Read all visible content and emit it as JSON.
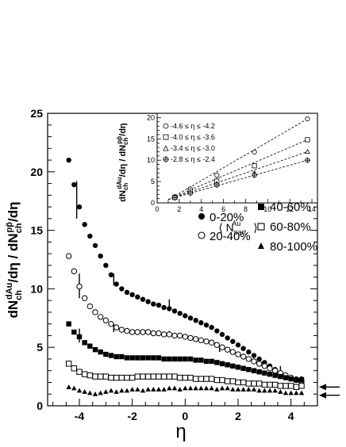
{
  "chart_data": [
    {
      "type": "scatter",
      "xlabel": "η",
      "ylabel": "dN_ch^dAu/dη / dN_ch^pp̄/dη",
      "xlim": [
        -5.2,
        5.0
      ],
      "ylim": [
        0,
        25
      ],
      "x_ticks": [
        -4,
        -2,
        0,
        2,
        4
      ],
      "y_ticks": [
        0,
        5,
        10,
        15,
        20,
        25
      ],
      "grid": false,
      "legend": "center-right",
      "series": [
        {
          "name": "0-20%",
          "marker": "filled-circle",
          "points": [
            [
              -4.4,
              21.0
            ],
            [
              -4.2,
              18.9
            ],
            [
              -4.0,
              17.0
            ],
            [
              -3.8,
              15.5
            ],
            [
              -3.6,
              14.5
            ],
            [
              -3.4,
              13.7
            ],
            [
              -3.2,
              12.8
            ],
            [
              -3.0,
              12.0
            ],
            [
              -2.8,
              11.2
            ],
            [
              -2.6,
              10.4
            ],
            [
              -2.4,
              10.0
            ],
            [
              -2.2,
              9.7
            ],
            [
              -2.0,
              9.5
            ],
            [
              -1.8,
              9.3
            ],
            [
              -1.6,
              9.1
            ],
            [
              -1.4,
              8.9
            ],
            [
              -1.2,
              8.7
            ],
            [
              -1.0,
              8.6
            ],
            [
              -0.8,
              8.4
            ],
            [
              -0.6,
              8.3
            ],
            [
              -0.4,
              8.1
            ],
            [
              -0.2,
              7.9
            ],
            [
              0.0,
              7.7
            ],
            [
              0.2,
              7.5
            ],
            [
              0.4,
              7.3
            ],
            [
              0.6,
              7.1
            ],
            [
              0.8,
              6.9
            ],
            [
              1.0,
              6.7
            ],
            [
              1.2,
              6.4
            ],
            [
              1.4,
              6.1
            ],
            [
              1.6,
              5.8
            ],
            [
              1.8,
              5.5
            ],
            [
              2.0,
              5.2
            ],
            [
              2.2,
              4.9
            ],
            [
              2.4,
              4.6
            ],
            [
              2.6,
              4.3
            ],
            [
              2.8,
              4.0
            ],
            [
              3.0,
              3.7
            ],
            [
              3.2,
              3.4
            ],
            [
              3.4,
              3.1
            ],
            [
              3.6,
              2.8
            ],
            [
              3.8,
              2.6
            ],
            [
              4.0,
              2.4
            ],
            [
              4.2,
              2.3
            ],
            [
              4.4,
              2.3
            ]
          ]
        },
        {
          "name": "20-40%",
          "marker": "open-circle",
          "points": [
            [
              -4.4,
              12.8
            ],
            [
              -4.2,
              11.5
            ],
            [
              -4.0,
              10.2
            ],
            [
              -3.8,
              9.2
            ],
            [
              -3.6,
              8.5
            ],
            [
              -3.4,
              8.0
            ],
            [
              -3.2,
              7.6
            ],
            [
              -3.0,
              7.3
            ],
            [
              -2.8,
              7.0
            ],
            [
              -2.6,
              6.7
            ],
            [
              -2.4,
              6.5
            ],
            [
              -2.2,
              6.4
            ],
            [
              -2.0,
              6.3
            ],
            [
              -1.8,
              6.3
            ],
            [
              -1.6,
              6.3
            ],
            [
              -1.4,
              6.3
            ],
            [
              -1.2,
              6.2
            ],
            [
              -1.0,
              6.2
            ],
            [
              -0.8,
              6.1
            ],
            [
              -0.6,
              6.1
            ],
            [
              -0.4,
              6.0
            ],
            [
              -0.2,
              6.0
            ],
            [
              0.0,
              5.9
            ],
            [
              0.2,
              5.8
            ],
            [
              0.4,
              5.7
            ],
            [
              0.6,
              5.6
            ],
            [
              0.8,
              5.5
            ],
            [
              1.0,
              5.4
            ],
            [
              1.2,
              5.2
            ],
            [
              1.4,
              5.0
            ],
            [
              1.6,
              4.8
            ],
            [
              1.8,
              4.6
            ],
            [
              2.0,
              4.4
            ],
            [
              2.2,
              4.2
            ],
            [
              2.4,
              4.0
            ],
            [
              2.6,
              3.8
            ],
            [
              2.8,
              3.6
            ],
            [
              3.0,
              3.4
            ],
            [
              3.2,
              3.2
            ],
            [
              3.4,
              3.0
            ],
            [
              3.6,
              2.8
            ],
            [
              3.8,
              2.6
            ],
            [
              4.0,
              2.4
            ],
            [
              4.2,
              2.2
            ],
            [
              4.4,
              2.1
            ]
          ]
        },
        {
          "name": "40-60%",
          "marker": "filled-square",
          "points": [
            [
              -4.4,
              7.0
            ],
            [
              -4.2,
              6.3
            ],
            [
              -4.0,
              5.9
            ],
            [
              -3.8,
              5.4
            ],
            [
              -3.6,
              5.1
            ],
            [
              -3.4,
              4.8
            ],
            [
              -3.2,
              4.6
            ],
            [
              -3.0,
              4.4
            ],
            [
              -2.8,
              4.3
            ],
            [
              -2.6,
              4.2
            ],
            [
              -2.4,
              4.2
            ],
            [
              -2.2,
              4.1
            ],
            [
              -2.0,
              4.1
            ],
            [
              -1.8,
              4.1
            ],
            [
              -1.6,
              4.1
            ],
            [
              -1.4,
              4.1
            ],
            [
              -1.2,
              4.1
            ],
            [
              -1.0,
              4.1
            ],
            [
              -0.8,
              4.0
            ],
            [
              -0.6,
              4.0
            ],
            [
              -0.4,
              4.0
            ],
            [
              -0.2,
              4.0
            ],
            [
              0.0,
              4.0
            ],
            [
              0.2,
              4.0
            ],
            [
              0.4,
              3.9
            ],
            [
              0.6,
              3.9
            ],
            [
              0.8,
              3.8
            ],
            [
              1.0,
              3.8
            ],
            [
              1.2,
              3.7
            ],
            [
              1.4,
              3.6
            ],
            [
              1.6,
              3.5
            ],
            [
              1.8,
              3.4
            ],
            [
              2.0,
              3.3
            ],
            [
              2.2,
              3.2
            ],
            [
              2.4,
              3.1
            ],
            [
              2.6,
              3.0
            ],
            [
              2.8,
              2.9
            ],
            [
              3.0,
              2.8
            ],
            [
              3.2,
              2.7
            ],
            [
              3.4,
              2.6
            ],
            [
              3.6,
              2.5
            ],
            [
              3.8,
              2.4
            ],
            [
              4.0,
              2.3
            ],
            [
              4.2,
              2.2
            ],
            [
              4.4,
              2.2
            ]
          ]
        },
        {
          "name": "60-80%",
          "marker": "open-square",
          "points": [
            [
              -4.4,
              3.6
            ],
            [
              -4.2,
              3.2
            ],
            [
              -4.0,
              2.9
            ],
            [
              -3.8,
              2.7
            ],
            [
              -3.6,
              2.6
            ],
            [
              -3.4,
              2.5
            ],
            [
              -3.2,
              2.5
            ],
            [
              -3.0,
              2.5
            ],
            [
              -2.8,
              2.4
            ],
            [
              -2.6,
              2.4
            ],
            [
              -2.4,
              2.4
            ],
            [
              -2.2,
              2.4
            ],
            [
              -2.0,
              2.4
            ],
            [
              -1.8,
              2.5
            ],
            [
              -1.6,
              2.5
            ],
            [
              -1.4,
              2.5
            ],
            [
              -1.2,
              2.5
            ],
            [
              -1.0,
              2.5
            ],
            [
              -0.8,
              2.5
            ],
            [
              -0.6,
              2.5
            ],
            [
              -0.4,
              2.5
            ],
            [
              -0.2,
              2.4
            ],
            [
              0.0,
              2.4
            ],
            [
              0.2,
              2.4
            ],
            [
              0.4,
              2.3
            ],
            [
              0.6,
              2.3
            ],
            [
              0.8,
              2.3
            ],
            [
              1.0,
              2.3
            ],
            [
              1.2,
              2.2
            ],
            [
              1.4,
              2.2
            ],
            [
              1.6,
              2.1
            ],
            [
              1.8,
              2.1
            ],
            [
              2.0,
              2.0
            ],
            [
              2.2,
              2.0
            ],
            [
              2.4,
              1.9
            ],
            [
              2.6,
              1.9
            ],
            [
              2.8,
              1.9
            ],
            [
              3.0,
              1.8
            ],
            [
              3.2,
              1.8
            ],
            [
              3.4,
              1.8
            ],
            [
              3.6,
              1.7
            ],
            [
              3.8,
              1.7
            ],
            [
              4.0,
              1.7
            ],
            [
              4.2,
              1.6
            ],
            [
              4.4,
              1.7
            ]
          ]
        },
        {
          "name": "80-100%",
          "marker": "filled-triangle",
          "points": [
            [
              -4.4,
              1.6
            ],
            [
              -4.2,
              1.5
            ],
            [
              -4.0,
              1.3
            ],
            [
              -3.8,
              1.2
            ],
            [
              -3.6,
              1.1
            ],
            [
              -3.4,
              1.0
            ],
            [
              -3.2,
              1.1
            ],
            [
              -3.0,
              1.2
            ],
            [
              -2.8,
              1.3
            ],
            [
              -2.6,
              1.2
            ],
            [
              -2.4,
              1.3
            ],
            [
              -2.2,
              1.3
            ],
            [
              -2.0,
              1.4
            ],
            [
              -1.8,
              1.4
            ],
            [
              -1.6,
              1.3
            ],
            [
              -1.4,
              1.4
            ],
            [
              -1.2,
              1.4
            ],
            [
              -1.0,
              1.4
            ],
            [
              -0.8,
              1.4
            ],
            [
              -0.6,
              1.5
            ],
            [
              -0.4,
              1.5
            ],
            [
              -0.2,
              1.4
            ],
            [
              0.0,
              1.5
            ],
            [
              0.2,
              1.5
            ],
            [
              0.4,
              1.5
            ],
            [
              0.6,
              1.5
            ],
            [
              0.8,
              1.5
            ],
            [
              1.0,
              1.5
            ],
            [
              1.2,
              1.4
            ],
            [
              1.4,
              1.5
            ],
            [
              1.6,
              1.5
            ],
            [
              1.8,
              1.4
            ],
            [
              2.0,
              1.4
            ],
            [
              2.2,
              1.4
            ],
            [
              2.4,
              1.4
            ],
            [
              2.6,
              1.4
            ],
            [
              2.8,
              1.3
            ],
            [
              3.0,
              1.3
            ],
            [
              3.2,
              1.3
            ],
            [
              3.4,
              1.3
            ],
            [
              3.6,
              1.2
            ],
            [
              3.8,
              1.1
            ],
            [
              4.0,
              1.1
            ],
            [
              4.2,
              1.1
            ],
            [
              4.4,
              1.1
            ]
          ]
        }
      ],
      "systematic_markers": [
        {
          "x": -4.1,
          "y_low": 16.0,
          "y_high": 19.2
        },
        {
          "x": -4.0,
          "y_low": 9.2,
          "y_high": 11.3
        },
        {
          "x": -4.0,
          "y_low": 5.4,
          "y_high": 6.6
        },
        {
          "x": -2.7,
          "y_low": 10.3,
          "y_high": 11.3
        },
        {
          "x": -2.7,
          "y_low": 6.3,
          "y_high": 7.0
        },
        {
          "x": -0.6,
          "y_low": 8.3,
          "y_high": 9.1
        },
        {
          "x": -0.6,
          "y_low": 5.9,
          "y_high": 6.4
        },
        {
          "x": 1.3,
          "y_low": 4.6,
          "y_high": 5.0
        },
        {
          "x": 3.6,
          "y_low": 2.9,
          "y_high": 3.4
        }
      ],
      "arrows": [
        {
          "y": 1.6
        },
        {
          "y": 0.9
        }
      ]
    },
    {
      "type": "scatter",
      "xlabel": "⟨N_part^Au⟩",
      "ylabel": "dN_ch^dAu/dη / dN_ch^pp̄/dη",
      "xlim": [
        0,
        14.5
      ],
      "ylim": [
        0,
        21
      ],
      "x_ticks": [
        0,
        2,
        4,
        6,
        8,
        10,
        12,
        14
      ],
      "y_ticks": [
        0,
        5,
        10,
        15,
        20
      ],
      "legend": "top-left",
      "series": [
        {
          "name": "-4.6 ≤ η ≤ -4.2",
          "marker": "open-circle",
          "points": [
            [
              1.6,
              1.5
            ],
            [
              3.0,
              3.3
            ],
            [
              5.4,
              6.5
            ],
            [
              8.8,
              11.9
            ],
            [
              13.6,
              19.7
            ]
          ],
          "fit": [
            [
              1.0,
              0.7
            ],
            [
              13.6,
              19.7
            ]
          ]
        },
        {
          "name": "-4.0 ≤ η ≤ -3.6",
          "marker": "open-square",
          "points": [
            [
              1.6,
              1.3
            ],
            [
              3.0,
              2.8
            ],
            [
              5.4,
              5.1
            ],
            [
              8.8,
              8.7
            ],
            [
              13.6,
              14.8
            ]
          ],
          "fit": [
            [
              1.0,
              0.8
            ],
            [
              13.6,
              14.8
            ]
          ]
        },
        {
          "name": "-3.4 ≤ η ≤ -3.0",
          "marker": "open-triangle",
          "points": [
            [
              1.6,
              1.2
            ],
            [
              3.0,
              2.5
            ],
            [
              5.4,
              4.5
            ],
            [
              8.8,
              7.0
            ],
            [
              13.6,
              12.0
            ]
          ],
          "fit": [
            [
              1.0,
              0.8
            ],
            [
              13.6,
              12.0
            ]
          ]
        },
        {
          "name": "-2.8 ≤ η ≤ -2.4",
          "marker": "open-cross-circle",
          "points": [
            [
              1.6,
              1.2
            ],
            [
              3.0,
              2.3
            ],
            [
              5.4,
              4.2
            ],
            [
              8.8,
              6.5
            ],
            [
              13.6,
              10.0
            ]
          ],
          "fit": [
            [
              1.0,
              0.8
            ],
            [
              13.6,
              10.0
            ]
          ]
        }
      ]
    }
  ]
}
